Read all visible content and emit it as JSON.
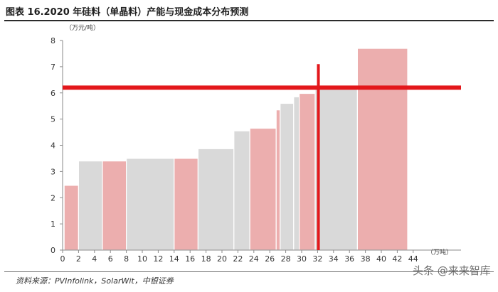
{
  "title": "图表 16.2020 年硅料（单晶料）产能与现金成本分布预测",
  "source": "资料来源：PVInfolink，SolarWit，中银证券",
  "watermark": "头条 @来来智库",
  "colors": {
    "pink": "#ecaeae",
    "gray": "#d9d9d9",
    "red": "#e3171b"
  },
  "chart_data": {
    "type": "bar",
    "ylabel": "（万元/吨）",
    "xlabel": "（万吨）",
    "xlim": [
      0,
      50
    ],
    "ylim": [
      0,
      8
    ],
    "xticks": [
      0,
      2,
      4,
      6,
      8,
      10,
      12,
      14,
      16,
      18,
      20,
      22,
      24,
      26,
      28,
      30,
      32,
      34,
      36,
      38,
      40,
      42,
      44
    ],
    "yticks": [
      0,
      1,
      2,
      3,
      4,
      5,
      6,
      7,
      8
    ],
    "segments": [
      {
        "x0": 0.2,
        "x1": 2.0,
        "value": 2.47,
        "color": "pink"
      },
      {
        "x0": 2.0,
        "x1": 5.0,
        "value": 3.4,
        "color": "gray"
      },
      {
        "x0": 5.0,
        "x1": 8.0,
        "value": 3.4,
        "color": "pink"
      },
      {
        "x0": 8.0,
        "x1": 14.0,
        "value": 3.5,
        "color": "gray"
      },
      {
        "x0": 14.0,
        "x1": 17.0,
        "value": 3.5,
        "color": "pink"
      },
      {
        "x0": 17.0,
        "x1": 21.5,
        "value": 3.87,
        "color": "gray"
      },
      {
        "x0": 21.5,
        "x1": 23.5,
        "value": 4.55,
        "color": "gray"
      },
      {
        "x0": 23.5,
        "x1": 26.8,
        "value": 4.65,
        "color": "pink"
      },
      {
        "x0": 26.8,
        "x1": 27.3,
        "value": 5.35,
        "color": "pink"
      },
      {
        "x0": 27.3,
        "x1": 29.0,
        "value": 5.6,
        "color": "gray"
      },
      {
        "x0": 29.0,
        "x1": 29.7,
        "value": 5.85,
        "color": "gray"
      },
      {
        "x0": 29.7,
        "x1": 31.7,
        "value": 5.98,
        "color": "pink"
      },
      {
        "x0": 31.7,
        "x1": 37.0,
        "value": 6.2,
        "color": "gray"
      },
      {
        "x0": 37.0,
        "x1": 43.3,
        "value": 7.7,
        "color": "pink"
      }
    ],
    "hline": {
      "y": 6.2,
      "x0": 0,
      "x1": 50
    },
    "vline": {
      "x": 32.1,
      "y0": 0,
      "y1": 7.1
    }
  }
}
